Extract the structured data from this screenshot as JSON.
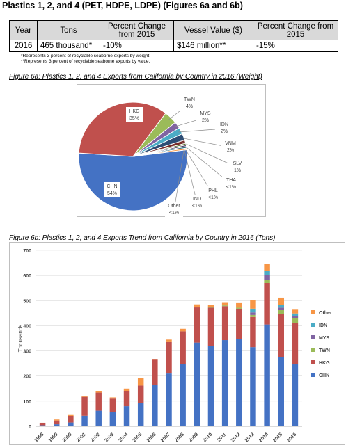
{
  "header": {
    "title": "Plastics 1, 2, and 4 (PET, HDPE, LDPE) (Figures 6a and 6b)"
  },
  "summary_table": {
    "headers": [
      "Year",
      "Tons",
      "Percent Change from 2015",
      "Vessel Value ($)",
      "Percent Change from 2015"
    ],
    "row": [
      "2016",
      "465 thousand*",
      "-10%",
      "$146 million**",
      "-15%"
    ]
  },
  "notes": [
    "*Represents 3 percent of recyclable seaborne exports by weight",
    "**Represents 3 percent of recyclable seaborne exports by value."
  ],
  "colors": {
    "CHN": "#4472c4",
    "HKG": "#c0504d",
    "TWN": "#9bbb59",
    "MYS": "#8064a2",
    "IDN": "#4bacc6",
    "Other": "#f79646"
  },
  "chart_data": [
    {
      "type": "pie",
      "title": "Figure 6a: Plastics 1, 2, and 4 Exports from California by Country in 2016 (Weight)",
      "slices": [
        {
          "label": "CHN",
          "pct": "54%",
          "value": 54,
          "color": "#4472c4"
        },
        {
          "label": "HKG",
          "pct": "35%",
          "value": 35,
          "color": "#c0504d"
        },
        {
          "label": "TWN",
          "pct": "4%",
          "value": 4,
          "color": "#9bbb59"
        },
        {
          "label": "MYS",
          "pct": "2%",
          "value": 2,
          "color": "#8064a2"
        },
        {
          "label": "IDN",
          "pct": "2%",
          "value": 2,
          "color": "#4bacc6"
        },
        {
          "label": "VNM",
          "pct": "2%",
          "value": 2,
          "color": "#2c4d75"
        },
        {
          "label": "SLV",
          "pct": "1%",
          "value": 1,
          "color": "#772c2a"
        },
        {
          "label": "THA",
          "pct": "<1%",
          "value": 0.5,
          "color": "#5f7530"
        },
        {
          "label": "PHL",
          "pct": "<1%",
          "value": 0.5,
          "color": "#4d3b62"
        },
        {
          "label": "IND",
          "pct": "<1%",
          "value": 0.5,
          "color": "#276a7c"
        },
        {
          "label": "Other",
          "pct": "<1%",
          "value": 0.5,
          "color": "#f79646"
        }
      ]
    },
    {
      "type": "bar",
      "stacked": true,
      "title": "Figure 6b: Plastics 1, 2, and 4 Exports Trend from California by Country in 2016 (Tons)",
      "ylabel": "Thousands",
      "ylim": [
        0,
        700
      ],
      "yticks": [
        "0",
        "100",
        "200",
        "300",
        "400",
        "500",
        "600",
        "700"
      ],
      "legend_position": "right",
      "legend_order": [
        "Other",
        "IDN",
        "MYS",
        "TWN",
        "HKG",
        "CHN"
      ],
      "categories": [
        "1998",
        "1999",
        "2000",
        "2001",
        "2002",
        "2003",
        "2004",
        "2005",
        "2006",
        "2007",
        "2008",
        "2009",
        "2010",
        "2011",
        "2012",
        "2013",
        "2014",
        "2015",
        "2016"
      ],
      "series": [
        {
          "name": "CHN",
          "values": [
            4,
            8,
            15,
            42,
            62,
            58,
            80,
            92,
            165,
            210,
            248,
            333,
            320,
            343,
            348,
            315,
            405,
            275,
            248
          ]
        },
        {
          "name": "HKG",
          "values": [
            8,
            15,
            24,
            75,
            72,
            52,
            60,
            70,
            100,
            125,
            130,
            140,
            152,
            135,
            120,
            120,
            165,
            172,
            163
          ]
        },
        {
          "name": "TWN",
          "values": [
            0,
            0,
            0,
            0,
            0,
            0,
            0,
            0,
            0,
            0,
            0,
            0,
            2,
            3,
            4,
            8,
            12,
            15,
            18
          ]
        },
        {
          "name": "MYS",
          "values": [
            0,
            0,
            0,
            0,
            0,
            0,
            0,
            0,
            0,
            0,
            0,
            0,
            0,
            0,
            0,
            10,
            20,
            10,
            10
          ]
        },
        {
          "name": "IDN",
          "values": [
            0,
            0,
            0,
            0,
            0,
            0,
            0,
            0,
            0,
            0,
            0,
            0,
            0,
            0,
            0,
            15,
            15,
            10,
            10
          ]
        },
        {
          "name": "Other",
          "values": [
            2,
            4,
            6,
            3,
            6,
            5,
            10,
            30,
            3,
            10,
            10,
            12,
            8,
            10,
            18,
            35,
            30,
            30,
            15
          ]
        }
      ]
    }
  ]
}
